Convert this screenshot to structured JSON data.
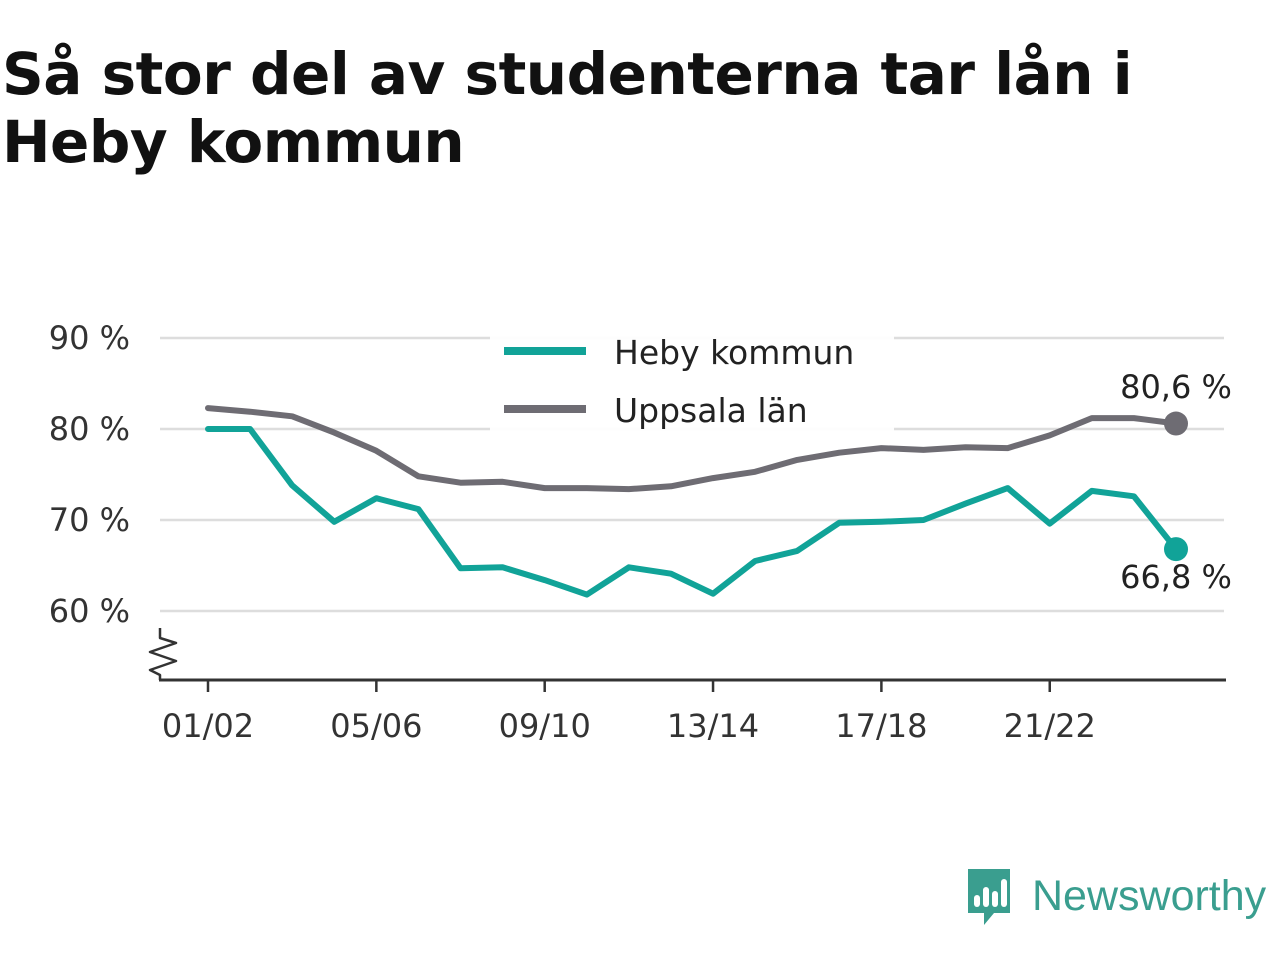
{
  "title": "Så stor del av studenterna tar lån i Heby kommun",
  "brand": {
    "name": "Newsworthy",
    "icon": "newsworthy-logo-icon",
    "color": "#3a9e8f"
  },
  "chart_data": {
    "type": "line",
    "title": "Så stor del av studenterna tar lån i Heby kommun",
    "xlabel": "",
    "ylabel": "",
    "ylim": [
      52.5,
      90
    ],
    "yticks": [
      60,
      70,
      80,
      90
    ],
    "ytick_labels": [
      "60 %",
      "70 %",
      "80 %",
      "90 %"
    ],
    "y_axis_break": true,
    "grid": true,
    "legend_position": "top-center",
    "categories": [
      "01/02",
      "02/03",
      "03/04",
      "04/05",
      "05/06",
      "06/07",
      "07/08",
      "08/09",
      "09/10",
      "10/11",
      "11/12",
      "12/13",
      "13/14",
      "14/15",
      "15/16",
      "16/17",
      "17/18",
      "18/19",
      "19/20",
      "20/21",
      "21/22",
      "22/23",
      "23/24",
      "24/25"
    ],
    "xtick_labels": [
      "01/02",
      "05/06",
      "09/10",
      "13/14",
      "17/18",
      "21/22"
    ],
    "series": [
      {
        "name": "Heby kommun",
        "color": "#11a398",
        "values": [
          80.0,
          80.0,
          73.8,
          69.8,
          72.4,
          71.2,
          64.7,
          64.8,
          63.4,
          61.8,
          64.8,
          64.1,
          61.9,
          65.5,
          66.6,
          69.7,
          69.8,
          70.0,
          71.8,
          73.5,
          69.6,
          73.2,
          72.6,
          66.8
        ],
        "end_label": "66,8 %"
      },
      {
        "name": "Uppsala län",
        "color": "#6e6c73",
        "values": [
          82.3,
          81.9,
          81.4,
          79.6,
          77.6,
          74.8,
          74.1,
          74.2,
          73.5,
          73.5,
          73.4,
          73.7,
          74.6,
          75.3,
          76.6,
          77.4,
          77.9,
          77.7,
          78.0,
          77.9,
          79.3,
          81.2,
          81.2,
          80.6
        ],
        "end_label": "80,6 %"
      }
    ]
  }
}
